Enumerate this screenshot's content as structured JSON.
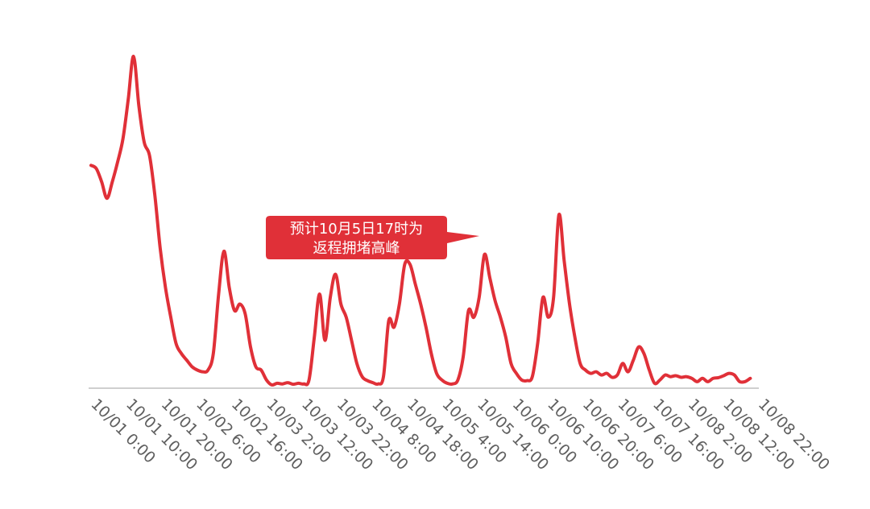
{
  "chart_data": {
    "type": "line",
    "title": "",
    "xlabel": "",
    "ylabel": "",
    "y_axis_shown": false,
    "grid": false,
    "legend": "none",
    "line_color": "#e03038",
    "baseline_color": "#cfcfcf",
    "x_tick_labels": [
      "10/01 0:00",
      "10/01 10:00",
      "10/01 20:00",
      "10/02 6:00",
      "10/02 16:00",
      "10/03 2:00",
      "10/03 12:00",
      "10/03 22:00",
      "10/04 8:00",
      "10/04 18:00",
      "10/05 4:00",
      "10/05 14:00",
      "10/06 0:00",
      "10/06 10:00",
      "10/06 20:00",
      "10/07 6:00",
      "10/07 16:00",
      "10/08 2:00",
      "10/08 12:00",
      "10/08 22:00"
    ],
    "x_unit": "hours since 10/01 0:00",
    "ylim": [
      0,
      100
    ],
    "series": [
      {
        "values": [
          [
            0,
            67
          ],
          [
            1,
            66
          ],
          [
            2,
            62
          ],
          [
            3,
            57
          ],
          [
            4,
            62
          ],
          [
            5,
            68
          ],
          [
            6,
            75
          ],
          [
            7,
            87
          ],
          [
            8,
            100
          ],
          [
            9,
            85
          ],
          [
            10,
            74
          ],
          [
            11,
            70
          ],
          [
            12,
            58
          ],
          [
            13,
            42
          ],
          [
            14,
            30
          ],
          [
            15,
            21
          ],
          [
            16,
            13
          ],
          [
            17,
            10
          ],
          [
            18,
            8
          ],
          [
            19,
            6
          ],
          [
            20,
            5
          ],
          [
            21,
            4.5
          ],
          [
            22,
            5
          ],
          [
            23,
            10
          ],
          [
            24,
            28
          ],
          [
            25,
            41
          ],
          [
            26,
            30
          ],
          [
            27,
            23
          ],
          [
            28,
            25
          ],
          [
            29,
            22
          ],
          [
            30,
            12
          ],
          [
            31,
            6
          ],
          [
            32,
            5
          ],
          [
            33,
            2
          ],
          [
            34,
            0.5
          ],
          [
            35,
            1
          ],
          [
            36,
            0.8
          ],
          [
            37,
            1.2
          ],
          [
            38,
            0.7
          ],
          [
            39,
            1
          ],
          [
            40,
            0.8
          ],
          [
            41,
            2
          ],
          [
            42,
            15
          ],
          [
            43,
            28
          ],
          [
            44,
            14
          ],
          [
            45,
            27
          ],
          [
            46,
            34
          ],
          [
            47,
            25
          ],
          [
            48,
            21
          ],
          [
            49,
            14
          ],
          [
            50,
            7
          ],
          [
            51,
            3
          ],
          [
            52,
            1.8
          ],
          [
            53,
            1.2
          ],
          [
            54,
            0.8
          ],
          [
            55,
            3
          ],
          [
            56,
            20
          ],
          [
            57,
            18
          ],
          [
            58,
            25
          ],
          [
            59,
            37
          ],
          [
            60,
            37
          ],
          [
            61,
            31
          ],
          [
            62,
            25
          ],
          [
            63,
            18
          ],
          [
            64,
            10
          ],
          [
            65,
            4
          ],
          [
            66,
            2
          ],
          [
            67,
            1
          ],
          [
            68,
            0.8
          ],
          [
            69,
            2
          ],
          [
            70,
            9
          ],
          [
            71,
            23
          ],
          [
            72,
            21
          ],
          [
            73,
            27
          ],
          [
            74,
            40
          ],
          [
            75,
            33
          ],
          [
            76,
            26
          ],
          [
            77,
            21
          ],
          [
            78,
            15
          ],
          [
            79,
            7
          ],
          [
            80,
            4
          ],
          [
            81,
            2
          ],
          [
            82,
            1.8
          ],
          [
            83,
            3
          ],
          [
            84,
            13
          ],
          [
            85,
            27
          ],
          [
            86,
            21
          ],
          [
            87,
            27
          ],
          [
            88,
            52
          ],
          [
            89,
            38
          ],
          [
            90,
            25
          ],
          [
            91,
            15
          ],
          [
            92,
            7
          ],
          [
            93,
            5
          ],
          [
            94,
            4
          ],
          [
            95,
            4.5
          ],
          [
            96,
            3.5
          ],
          [
            97,
            4
          ],
          [
            98,
            2.8
          ],
          [
            99,
            3.5
          ],
          [
            100,
            7
          ],
          [
            101,
            4.5
          ],
          [
            102,
            8
          ],
          [
            103,
            12
          ],
          [
            104,
            10
          ],
          [
            105,
            5
          ],
          [
            106,
            1
          ],
          [
            107,
            2
          ],
          [
            108,
            3.5
          ],
          [
            109,
            3
          ],
          [
            110,
            3.3
          ],
          [
            111,
            2.8
          ],
          [
            112,
            3
          ],
          [
            113,
            2.5
          ],
          [
            114,
            1.5
          ],
          [
            115,
            2.5
          ],
          [
            116,
            1.5
          ],
          [
            117,
            2.5
          ],
          [
            118,
            2.7
          ],
          [
            119,
            3.3
          ],
          [
            120,
            4
          ],
          [
            121,
            3.5
          ],
          [
            122,
            1.5
          ],
          [
            123,
            1.5
          ],
          [
            124,
            2.5
          ]
        ]
      }
    ],
    "annotation": {
      "text_line1": "预计10月5日17时为",
      "text_line2": "返程拥堵高峰",
      "color": "#e03038",
      "text_color": "#ffffff"
    }
  }
}
